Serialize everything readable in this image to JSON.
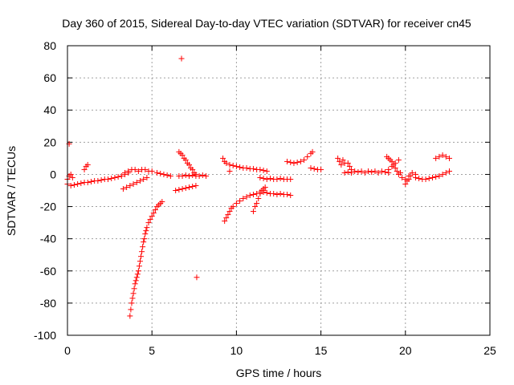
{
  "chart_data": {
    "type": "scatter",
    "title": "Day 360 of 2015, Sidereal Day-to-day VTEC variation (SDTVAR) for receiver cn45",
    "xlabel": "GPS time / hours",
    "ylabel": "SDTVAR / TECUs",
    "xlim": [
      0,
      25
    ],
    "ylim": [
      -100,
      80
    ],
    "xticks": [
      0,
      5,
      10,
      15,
      20,
      25
    ],
    "yticks": [
      -100,
      -80,
      -60,
      -40,
      -20,
      0,
      20,
      40,
      60,
      80
    ],
    "grid": true,
    "marker": "+",
    "color": "#ff0000",
    "segments": [
      {
        "x": [
          0.0,
          0.2,
          0.4,
          0.6,
          0.8,
          1.0,
          1.2,
          1.4,
          1.6,
          1.8,
          2.0,
          2.2,
          2.4,
          2.6,
          2.8,
          3.0,
          3.2,
          3.4,
          3.6
        ],
        "y": [
          -6,
          -7,
          -6.5,
          -6,
          -5.5,
          -5,
          -5,
          -4.5,
          -4,
          -4,
          -3.5,
          -3,
          -3,
          -2.5,
          -2,
          -1.5,
          -1,
          0,
          1
        ]
      },
      {
        "x": [
          0.0,
          0.1,
          0.2,
          0.3
        ],
        "y": [
          -3,
          -1,
          0,
          -2
        ]
      },
      {
        "x": [
          1.0,
          1.1,
          1.2
        ],
        "y": [
          3,
          5,
          6
        ]
      },
      {
        "x": [
          3.4,
          3.6,
          3.8,
          4.0,
          4.2,
          4.4,
          4.6,
          4.8,
          5.0
        ],
        "y": [
          1,
          2,
          3,
          3,
          2,
          3,
          3,
          2,
          2
        ]
      },
      {
        "x": [
          3.3,
          3.5,
          3.7,
          3.9,
          4.1,
          4.3,
          4.5,
          4.7
        ],
        "y": [
          -9,
          -8,
          -7,
          -6,
          -5,
          -4,
          -3,
          -2
        ]
      },
      {
        "x": [
          3.7,
          3.75,
          3.8,
          3.85,
          3.9,
          3.95,
          4.0,
          4.05,
          4.1,
          4.15,
          4.2,
          4.25,
          4.3,
          4.35,
          4.4,
          4.45,
          4.5,
          4.55,
          4.6,
          4.65,
          4.7,
          4.8,
          4.9,
          5.0,
          5.1,
          5.2,
          5.3,
          5.4,
          5.5,
          5.6
        ],
        "y": [
          -88,
          -84,
          -80,
          -77,
          -74,
          -71,
          -68,
          -66,
          -64,
          -62,
          -60,
          -57,
          -54,
          -51,
          -48,
          -45,
          -42,
          -40,
          -37,
          -35,
          -33,
          -30,
          -28,
          -26,
          -24,
          -22,
          -20,
          -19,
          -18,
          -17
        ]
      },
      {
        "x": [
          5.3,
          5.5,
          5.7,
          5.9,
          6.1
        ],
        "y": [
          1,
          0.5,
          0,
          -0.5,
          -1
        ]
      },
      {
        "x": [
          6.6,
          6.7,
          6.8,
          6.9,
          7.0,
          7.1,
          7.2,
          7.3,
          7.4,
          7.5,
          7.6
        ],
        "y": [
          14,
          13,
          12,
          10,
          9,
          7,
          6,
          4,
          3,
          1,
          0
        ]
      },
      {
        "x": [
          6.6,
          6.8,
          7.0,
          7.2,
          7.4,
          7.6,
          7.8,
          8.0,
          8.2
        ],
        "y": [
          -1,
          -1,
          -0.5,
          -1,
          -0.5,
          -1,
          -1,
          -0.5,
          -1
        ]
      },
      {
        "x": [
          6.4,
          6.6,
          6.8,
          7.0,
          7.2,
          7.4,
          7.6
        ],
        "y": [
          -10,
          -9.5,
          -9,
          -8.5,
          -8,
          -7.5,
          -7
        ]
      },
      {
        "x": [
          9.2,
          9.3,
          9.4,
          9.6,
          9.8,
          10.0,
          10.2,
          10.4,
          10.6,
          10.8,
          11.0,
          11.2,
          11.4,
          11.6,
          11.8
        ],
        "y": [
          10,
          8,
          7,
          6,
          5.5,
          5,
          4.5,
          4,
          4,
          3.5,
          3.5,
          3,
          3,
          2.5,
          2
        ]
      },
      {
        "x": [
          11.4,
          11.6,
          11.8,
          12.0,
          12.2,
          12.4,
          12.6,
          12.8,
          13.0,
          13.2
        ],
        "y": [
          -2,
          -2.5,
          -3,
          -2.5,
          -3,
          -3,
          -2.5,
          -3,
          -3,
          -3
        ]
      },
      {
        "x": [
          9.3,
          9.4,
          9.5,
          9.6,
          9.7,
          9.8,
          10.0,
          10.2,
          10.4,
          10.6,
          10.8,
          11.0,
          11.2,
          11.4,
          11.6
        ],
        "y": [
          -29,
          -27,
          -25,
          -23,
          -21,
          -20,
          -18,
          -16.5,
          -15,
          -14,
          -13,
          -12.5,
          -12,
          -11,
          -10
        ]
      },
      {
        "x": [
          11.0,
          11.1,
          11.2,
          11.3,
          11.4,
          11.5,
          11.6,
          11.7
        ],
        "y": [
          -23,
          -20,
          -18,
          -15,
          -12,
          -10,
          -9,
          -8
        ]
      },
      {
        "x": [
          11.6,
          11.8,
          12.0,
          12.2,
          12.4,
          12.6,
          12.8,
          13.0,
          13.2
        ],
        "y": [
          -11,
          -11.5,
          -12,
          -12,
          -12.5,
          -12,
          -12.5,
          -12.5,
          -13
        ]
      },
      {
        "x": [
          13.0,
          13.2,
          13.4,
          13.6,
          13.8,
          14.0,
          14.2,
          14.4,
          14.5
        ],
        "y": [
          8,
          7.5,
          7,
          7.5,
          8,
          9,
          11,
          13,
          14
        ]
      },
      {
        "x": [
          14.4,
          14.6,
          14.8,
          15.0
        ],
        "y": [
          4,
          3.5,
          3,
          3
        ]
      },
      {
        "x": [
          16.0,
          16.1,
          16.2,
          16.3,
          16.4
        ],
        "y": [
          10,
          8,
          6,
          9,
          7
        ]
      },
      {
        "x": [
          16.4,
          16.6,
          16.8,
          17.0,
          17.2,
          17.4,
          17.6,
          17.8,
          18.0,
          18.2,
          18.4,
          18.6,
          18.8,
          19.0
        ],
        "y": [
          1,
          1.5,
          1,
          2,
          1.5,
          2,
          1,
          2,
          1.5,
          2,
          1,
          2,
          1.5,
          1
        ]
      },
      {
        "x": [
          16.6,
          16.7,
          16.8
        ],
        "y": [
          7,
          5,
          3
        ]
      },
      {
        "x": [
          18.9,
          19.0,
          19.1,
          19.2,
          19.3,
          19.4,
          19.5,
          19.6,
          19.7
        ],
        "y": [
          11,
          10,
          9,
          8,
          6,
          4,
          2,
          0,
          1
        ]
      },
      {
        "x": [
          19.0,
          19.2,
          19.4,
          19.6
        ],
        "y": [
          3,
          5,
          7,
          9
        ]
      },
      {
        "x": [
          19.8,
          20.0,
          20.2,
          20.4,
          20.6
        ],
        "y": [
          -2,
          -3,
          -1,
          1,
          0
        ]
      },
      {
        "x": [
          20.0,
          20.1,
          20.2,
          20.3
        ],
        "y": [
          -6,
          -4,
          -3,
          -1
        ]
      },
      {
        "x": [
          20.6,
          20.8,
          21.0,
          21.2,
          21.4,
          21.6,
          21.8,
          22.0,
          22.2,
          22.4,
          22.6
        ],
        "y": [
          -2,
          -2.5,
          -3,
          -3,
          -2.5,
          -2,
          -1.5,
          -1,
          0,
          1,
          2
        ]
      },
      {
        "x": [
          21.8,
          22.0,
          22.2,
          22.4,
          22.6
        ],
        "y": [
          10,
          11,
          12,
          11,
          10
        ]
      },
      {
        "x": [
          0.1,
          6.75,
          7.65,
          9.6
        ],
        "y": [
          19,
          72,
          -64,
          2
        ]
      }
    ]
  }
}
